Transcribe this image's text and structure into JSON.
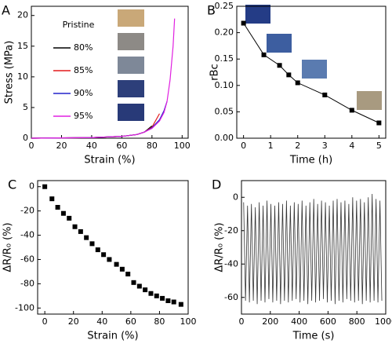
{
  "chart_data": [
    {
      "type": "line",
      "panel_label": "A",
      "xlabel": "Strain (%)",
      "ylabel": "Stress (MPa)",
      "annotation": "Pristine",
      "x": [
        0,
        20,
        40,
        60,
        70,
        75,
        80,
        85,
        88,
        90,
        92,
        94,
        95
      ],
      "series": [
        {
          "name": "80%",
          "color": "#000000",
          "values": [
            0,
            0.05,
            0.1,
            0.3,
            0.6,
            1.0,
            2.0,
            null,
            null,
            null,
            null,
            null,
            null
          ]
        },
        {
          "name": "85%",
          "color": "#e31a1c",
          "values": [
            0,
            0.05,
            0.1,
            0.3,
            0.6,
            1.0,
            1.8,
            4.0,
            null,
            null,
            null,
            null,
            null
          ]
        },
        {
          "name": "90%",
          "color": "#2222cc",
          "values": [
            0,
            0.05,
            0.1,
            0.3,
            0.6,
            1.0,
            1.7,
            3.0,
            4.5,
            6.0,
            null,
            null,
            null
          ]
        },
        {
          "name": "95%",
          "color": "#e020e0",
          "values": [
            0,
            0.05,
            0.1,
            0.3,
            0.6,
            1.0,
            1.6,
            2.8,
            4.2,
            6.0,
            9.5,
            15.0,
            19.5
          ]
        }
      ],
      "legend": "upper-left",
      "xlim": [
        0,
        104
      ],
      "ylim": [
        0,
        21.5
      ],
      "xticks": [
        0,
        20,
        40,
        60,
        80,
        100
      ],
      "yticks": [
        0,
        5,
        10,
        15,
        20
      ]
    },
    {
      "type": "line",
      "markers": true,
      "panel_label": "B",
      "xlabel": "Time (h)",
      "ylabel": "rBc",
      "color": "#000000",
      "x": [
        0,
        0.75,
        1.33,
        1.67,
        2,
        3,
        4,
        5
      ],
      "values": [
        0.218,
        0.158,
        0.138,
        0.12,
        0.105,
        0.082,
        0.053,
        0.029
      ],
      "xlim": [
        -0.25,
        5.25
      ],
      "ylim": [
        0,
        0.25
      ],
      "xticks": [
        0,
        1,
        2,
        3,
        4,
        5
      ],
      "yticks": [
        {
          "value": 0,
          "label": "0.00"
        },
        {
          "value": 0.05,
          "label": "0.05"
        },
        {
          "value": 0.1,
          "label": "0.10"
        },
        {
          "value": 0.15,
          "label": "0.15"
        },
        {
          "value": 0.2,
          "label": "0.20"
        },
        {
          "value": 0.25,
          "label": "0.25"
        }
      ]
    },
    {
      "type": "scatter",
      "panel_label": "C",
      "xlabel": "Strain (%)",
      "ylabel": "ΔR/R₀ (%)",
      "color": "#000000",
      "x": [
        0,
        5,
        9,
        13,
        17,
        21,
        25,
        29,
        33,
        37,
        41,
        45,
        50,
        54,
        58,
        62,
        66,
        70,
        74,
        78,
        82,
        86,
        90,
        95
      ],
      "values": [
        0,
        -10,
        -17,
        -22,
        -26,
        -33,
        -37,
        -42,
        -47,
        -52,
        -56,
        -60,
        -64,
        -68,
        -72,
        -79,
        -82,
        -85,
        -88,
        -90,
        -92,
        -94,
        -95,
        -97
      ],
      "xlim": [
        -5,
        100
      ],
      "ylim": [
        -105,
        5
      ],
      "xticks": [
        0,
        20,
        40,
        60,
        80,
        100
      ],
      "yticks": [
        0,
        -20,
        -40,
        -60,
        -80,
        -100
      ]
    },
    {
      "type": "line",
      "panel_label": "D",
      "xlabel": "Time (s)",
      "ylabel": "ΔR/R₀ (%)",
      "color": "#333333",
      "x": [
        15,
        28,
        42,
        55,
        69,
        82,
        96,
        109,
        123,
        136,
        150,
        163,
        177,
        190,
        204,
        217,
        231,
        244,
        258,
        271,
        285,
        298,
        312,
        325,
        339,
        352,
        366,
        379,
        393,
        406,
        420,
        433,
        447,
        460,
        474,
        487,
        501,
        514,
        528,
        541,
        555,
        568,
        582,
        595,
        609,
        622,
        636,
        649,
        663,
        676,
        690,
        703,
        717,
        730,
        744,
        757,
        771,
        784,
        798,
        811,
        825,
        838,
        852,
        865,
        879,
        892,
        906,
        919,
        933,
        946,
        960,
        973
      ],
      "values": [
        -3,
        -62,
        -5,
        -63,
        -4,
        -62,
        -6,
        -64,
        -3,
        -62,
        -5,
        -63,
        -2,
        -61,
        -4,
        -63,
        -5,
        -62,
        -3,
        -64,
        -4,
        -62,
        -2,
        -63,
        -5,
        -62,
        -3,
        -61,
        -4,
        -63,
        -2,
        -62,
        -5,
        -64,
        -3,
        -62,
        -1,
        -63,
        -4,
        -62,
        -2,
        -61,
        -3,
        -63,
        -5,
        -62,
        -2,
        -64,
        -1,
        -62,
        -3,
        -63,
        -2,
        -61,
        -4,
        -62,
        0,
        -63,
        -2,
        -62,
        -1,
        -64,
        -3,
        -62,
        0,
        -63,
        2,
        -62,
        -1,
        -63,
        -2,
        -62
      ],
      "xlim": [
        0,
        1000
      ],
      "ylim": [
        -70,
        10
      ],
      "xticks": [
        0,
        200,
        400,
        600,
        800,
        1000
      ],
      "yticks": [
        0,
        -20,
        -40,
        -60
      ]
    }
  ]
}
